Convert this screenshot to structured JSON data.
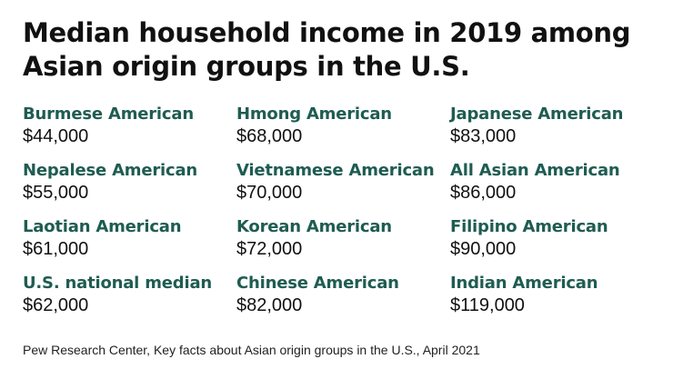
{
  "chart_data": {
    "type": "table",
    "title": "Median household income in 2019 among Asian origin groups in the U.S.",
    "items": [
      {
        "label": "Burmese American",
        "value": "$44,000"
      },
      {
        "label": "Nepalese American",
        "value": "$55,000"
      },
      {
        "label": "Laotian American",
        "value": "$61,000"
      },
      {
        "label": "U.S. national median",
        "value": "$62,000"
      },
      {
        "label": "Hmong American",
        "value": "$68,000"
      },
      {
        "label": "Vietnamese American",
        "value": "$70,000"
      },
      {
        "label": "Korean American",
        "value": "$72,000"
      },
      {
        "label": "Chinese American",
        "value": "$82,000"
      },
      {
        "label": "Japanese American",
        "value": "$83,000"
      },
      {
        "label": "All Asian American",
        "value": "$86,000"
      },
      {
        "label": "Filipino American",
        "value": "$90,000"
      },
      {
        "label": "Indian American",
        "value": "$119,000"
      }
    ],
    "values": [
      44000,
      55000,
      61000,
      62000,
      68000,
      70000,
      72000,
      82000,
      83000,
      86000,
      90000,
      119000
    ],
    "source": "Pew Research Center, Key facts about Asian origin groups in the U.S., April 2021"
  },
  "colors": {
    "label": "#1f5c52",
    "text": "#111111"
  }
}
